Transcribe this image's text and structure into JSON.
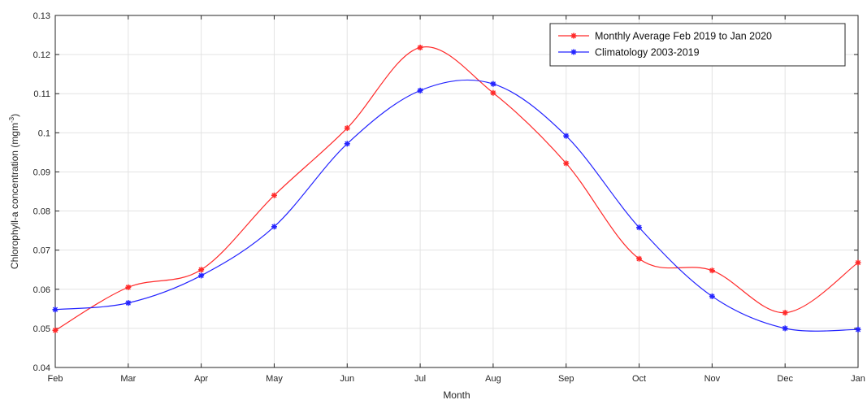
{
  "chart_data": {
    "type": "line",
    "title": "",
    "xlabel": "Month",
    "ylabel": "Chlorophyll-a concentration (mgm",
    "ylabel_superscript": "-3",
    "ylabel_suffix": ")",
    "categories": [
      "Feb",
      "Mar",
      "Apr",
      "May",
      "Jun",
      "Jul",
      "Aug",
      "Sep",
      "Oct",
      "Nov",
      "Dec",
      "Jan"
    ],
    "y_ticks": [
      "0.04",
      "0.05",
      "0.06",
      "0.07",
      "0.08",
      "0.09",
      "0.1",
      "0.11",
      "0.12",
      "0.13"
    ],
    "ylim": [
      0.04,
      0.13
    ],
    "grid": true,
    "legend_position": "top-right",
    "series": [
      {
        "name": "Monthly Average Feb 2019 to Jan 2020",
        "color": "#ff2a2a",
        "marker": "asterisk",
        "values": [
          0.0495,
          0.0605,
          0.065,
          0.084,
          0.1012,
          0.1218,
          0.1102,
          0.0922,
          0.0678,
          0.0648,
          0.054,
          0.0668
        ]
      },
      {
        "name": "Climatology 2003-2019",
        "color": "#2424ff",
        "marker": "asterisk",
        "values": [
          0.0548,
          0.0565,
          0.0635,
          0.076,
          0.0972,
          0.1108,
          0.1125,
          0.0992,
          0.0758,
          0.0582,
          0.05,
          0.0497
        ]
      }
    ]
  }
}
